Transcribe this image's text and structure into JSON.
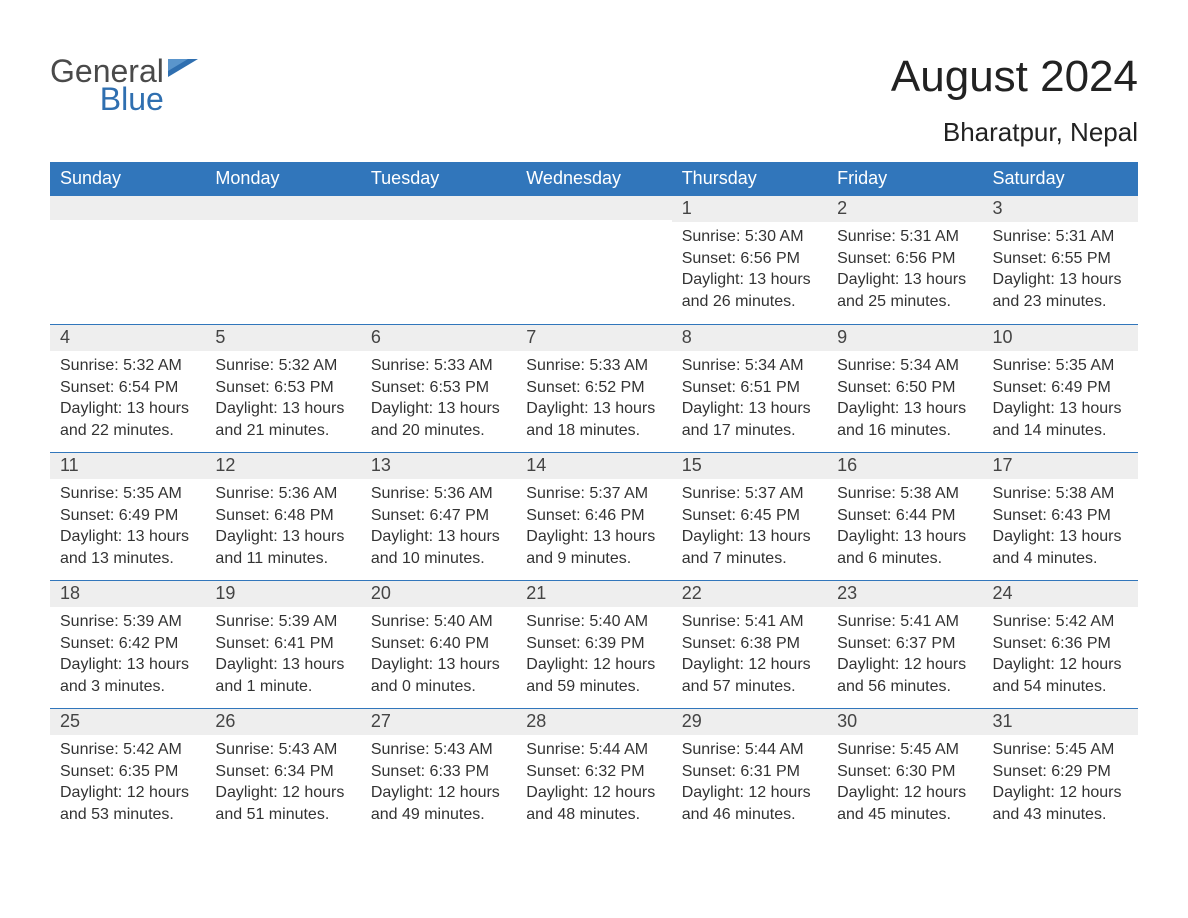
{
  "brand": {
    "word1": "General",
    "word2": "Blue",
    "text_color": "#4a4a4a",
    "accent_color": "#2f6fb0"
  },
  "header": {
    "title": "August 2024",
    "location": "Bharatpur, Nepal"
  },
  "colors": {
    "header_bg": "#3176bb",
    "header_text": "#ffffff",
    "daynum_bg": "#eeeeee",
    "week_border": "#3176bb",
    "body_text": "#333333",
    "page_bg": "#ffffff"
  },
  "weekdays": [
    "Sunday",
    "Monday",
    "Tuesday",
    "Wednesday",
    "Thursday",
    "Friday",
    "Saturday"
  ],
  "weeks": [
    [
      {
        "n": "",
        "sunrise": "",
        "sunset": "",
        "daylight": ""
      },
      {
        "n": "",
        "sunrise": "",
        "sunset": "",
        "daylight": ""
      },
      {
        "n": "",
        "sunrise": "",
        "sunset": "",
        "daylight": ""
      },
      {
        "n": "",
        "sunrise": "",
        "sunset": "",
        "daylight": ""
      },
      {
        "n": "1",
        "sunrise": "Sunrise: 5:30 AM",
        "sunset": "Sunset: 6:56 PM",
        "daylight": "Daylight: 13 hours and 26 minutes."
      },
      {
        "n": "2",
        "sunrise": "Sunrise: 5:31 AM",
        "sunset": "Sunset: 6:56 PM",
        "daylight": "Daylight: 13 hours and 25 minutes."
      },
      {
        "n": "3",
        "sunrise": "Sunrise: 5:31 AM",
        "sunset": "Sunset: 6:55 PM",
        "daylight": "Daylight: 13 hours and 23 minutes."
      }
    ],
    [
      {
        "n": "4",
        "sunrise": "Sunrise: 5:32 AM",
        "sunset": "Sunset: 6:54 PM",
        "daylight": "Daylight: 13 hours and 22 minutes."
      },
      {
        "n": "5",
        "sunrise": "Sunrise: 5:32 AM",
        "sunset": "Sunset: 6:53 PM",
        "daylight": "Daylight: 13 hours and 21 minutes."
      },
      {
        "n": "6",
        "sunrise": "Sunrise: 5:33 AM",
        "sunset": "Sunset: 6:53 PM",
        "daylight": "Daylight: 13 hours and 20 minutes."
      },
      {
        "n": "7",
        "sunrise": "Sunrise: 5:33 AM",
        "sunset": "Sunset: 6:52 PM",
        "daylight": "Daylight: 13 hours and 18 minutes."
      },
      {
        "n": "8",
        "sunrise": "Sunrise: 5:34 AM",
        "sunset": "Sunset: 6:51 PM",
        "daylight": "Daylight: 13 hours and 17 minutes."
      },
      {
        "n": "9",
        "sunrise": "Sunrise: 5:34 AM",
        "sunset": "Sunset: 6:50 PM",
        "daylight": "Daylight: 13 hours and 16 minutes."
      },
      {
        "n": "10",
        "sunrise": "Sunrise: 5:35 AM",
        "sunset": "Sunset: 6:49 PM",
        "daylight": "Daylight: 13 hours and 14 minutes."
      }
    ],
    [
      {
        "n": "11",
        "sunrise": "Sunrise: 5:35 AM",
        "sunset": "Sunset: 6:49 PM",
        "daylight": "Daylight: 13 hours and 13 minutes."
      },
      {
        "n": "12",
        "sunrise": "Sunrise: 5:36 AM",
        "sunset": "Sunset: 6:48 PM",
        "daylight": "Daylight: 13 hours and 11 minutes."
      },
      {
        "n": "13",
        "sunrise": "Sunrise: 5:36 AM",
        "sunset": "Sunset: 6:47 PM",
        "daylight": "Daylight: 13 hours and 10 minutes."
      },
      {
        "n": "14",
        "sunrise": "Sunrise: 5:37 AM",
        "sunset": "Sunset: 6:46 PM",
        "daylight": "Daylight: 13 hours and 9 minutes."
      },
      {
        "n": "15",
        "sunrise": "Sunrise: 5:37 AM",
        "sunset": "Sunset: 6:45 PM",
        "daylight": "Daylight: 13 hours and 7 minutes."
      },
      {
        "n": "16",
        "sunrise": "Sunrise: 5:38 AM",
        "sunset": "Sunset: 6:44 PM",
        "daylight": "Daylight: 13 hours and 6 minutes."
      },
      {
        "n": "17",
        "sunrise": "Sunrise: 5:38 AM",
        "sunset": "Sunset: 6:43 PM",
        "daylight": "Daylight: 13 hours and 4 minutes."
      }
    ],
    [
      {
        "n": "18",
        "sunrise": "Sunrise: 5:39 AM",
        "sunset": "Sunset: 6:42 PM",
        "daylight": "Daylight: 13 hours and 3 minutes."
      },
      {
        "n": "19",
        "sunrise": "Sunrise: 5:39 AM",
        "sunset": "Sunset: 6:41 PM",
        "daylight": "Daylight: 13 hours and 1 minute."
      },
      {
        "n": "20",
        "sunrise": "Sunrise: 5:40 AM",
        "sunset": "Sunset: 6:40 PM",
        "daylight": "Daylight: 13 hours and 0 minutes."
      },
      {
        "n": "21",
        "sunrise": "Sunrise: 5:40 AM",
        "sunset": "Sunset: 6:39 PM",
        "daylight": "Daylight: 12 hours and 59 minutes."
      },
      {
        "n": "22",
        "sunrise": "Sunrise: 5:41 AM",
        "sunset": "Sunset: 6:38 PM",
        "daylight": "Daylight: 12 hours and 57 minutes."
      },
      {
        "n": "23",
        "sunrise": "Sunrise: 5:41 AM",
        "sunset": "Sunset: 6:37 PM",
        "daylight": "Daylight: 12 hours and 56 minutes."
      },
      {
        "n": "24",
        "sunrise": "Sunrise: 5:42 AM",
        "sunset": "Sunset: 6:36 PM",
        "daylight": "Daylight: 12 hours and 54 minutes."
      }
    ],
    [
      {
        "n": "25",
        "sunrise": "Sunrise: 5:42 AM",
        "sunset": "Sunset: 6:35 PM",
        "daylight": "Daylight: 12 hours and 53 minutes."
      },
      {
        "n": "26",
        "sunrise": "Sunrise: 5:43 AM",
        "sunset": "Sunset: 6:34 PM",
        "daylight": "Daylight: 12 hours and 51 minutes."
      },
      {
        "n": "27",
        "sunrise": "Sunrise: 5:43 AM",
        "sunset": "Sunset: 6:33 PM",
        "daylight": "Daylight: 12 hours and 49 minutes."
      },
      {
        "n": "28",
        "sunrise": "Sunrise: 5:44 AM",
        "sunset": "Sunset: 6:32 PM",
        "daylight": "Daylight: 12 hours and 48 minutes."
      },
      {
        "n": "29",
        "sunrise": "Sunrise: 5:44 AM",
        "sunset": "Sunset: 6:31 PM",
        "daylight": "Daylight: 12 hours and 46 minutes."
      },
      {
        "n": "30",
        "sunrise": "Sunrise: 5:45 AM",
        "sunset": "Sunset: 6:30 PM",
        "daylight": "Daylight: 12 hours and 45 minutes."
      },
      {
        "n": "31",
        "sunrise": "Sunrise: 5:45 AM",
        "sunset": "Sunset: 6:29 PM",
        "daylight": "Daylight: 12 hours and 43 minutes."
      }
    ]
  ]
}
